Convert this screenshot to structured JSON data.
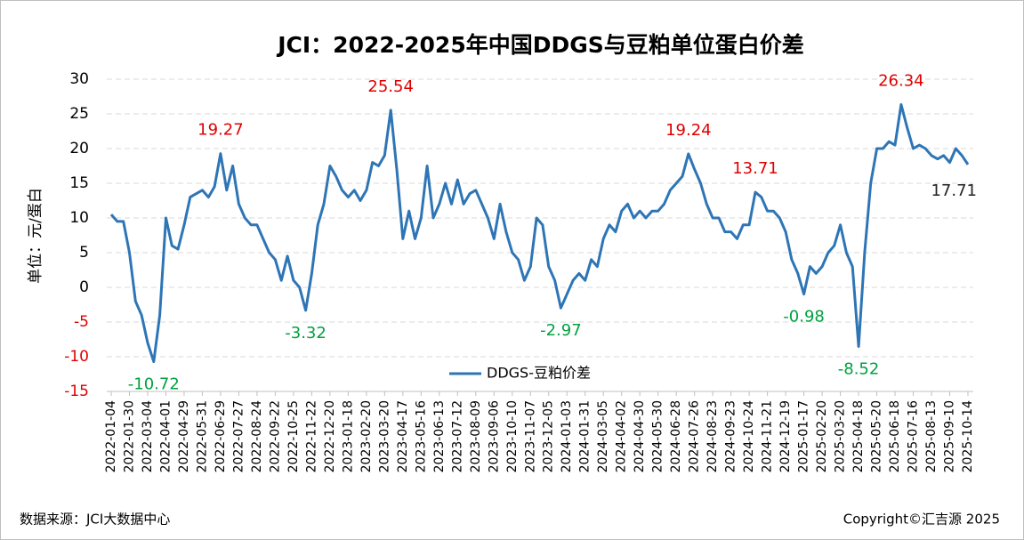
{
  "chart_data": {
    "type": "line",
    "title": "JCI：2022-2025年中国DDGS与豆粕单位蛋白价差",
    "y_label": "单位：元/蛋白",
    "source": "数据来源：JCI大数据中心",
    "copyright": "Copyright©汇吉源 2025",
    "ylim": [
      -15,
      30
    ],
    "yticks": [
      -15,
      -10,
      -5,
      0,
      5,
      10,
      15,
      20,
      25,
      30
    ],
    "grid": true,
    "legend": "bottom",
    "negative_tick_color": "#e00000",
    "peak_label_color": "#e00000",
    "trough_label_color": "#00a040",
    "last_label_color": "#222222",
    "categories": [
      "2022-01-04",
      null,
      null,
      "2022-01-30",
      null,
      null,
      "2022-03-04",
      null,
      null,
      "2022-04-01",
      null,
      null,
      "2022-04-29",
      null,
      null,
      "2022-05-31",
      null,
      null,
      "2022-06-29",
      null,
      null,
      "2022-07-27",
      null,
      null,
      "2022-08-24",
      null,
      null,
      "2022-09-22",
      null,
      null,
      "2022-10-25",
      null,
      null,
      "2022-11-22",
      null,
      null,
      "2022-12-20",
      null,
      null,
      "2023-01-18",
      null,
      null,
      "2023-02-20",
      null,
      null,
      "2023-03-20",
      null,
      null,
      "2023-04-17",
      null,
      null,
      "2023-05-16",
      null,
      null,
      "2023-06-13",
      null,
      null,
      "2023-07-12",
      null,
      null,
      "2023-08-09",
      null,
      null,
      "2023-09-06",
      null,
      null,
      "2023-10-10",
      null,
      null,
      "2023-11-07",
      null,
      null,
      "2023-12-05",
      null,
      null,
      "2024-01-03",
      null,
      null,
      "2024-01-31",
      null,
      null,
      "2024-03-05",
      null,
      null,
      "2024-04-02",
      null,
      null,
      "2024-04-30",
      null,
      null,
      "2024-05-30",
      null,
      null,
      "2024-06-28",
      null,
      null,
      "2024-07-26",
      null,
      null,
      "2024-08-23",
      null,
      null,
      "2024-09-23",
      null,
      null,
      "2024-10-24",
      null,
      null,
      "2024-11-21",
      null,
      null,
      "2024-12-19",
      null,
      null,
      "2025-01-17",
      null,
      null,
      "2025-02-20",
      null,
      null,
      "2025-03-20",
      null,
      null,
      "2025-04-18",
      null,
      null,
      "2025-05-20",
      null,
      null,
      "2025-06-18",
      null,
      null,
      "2025-07-16",
      null,
      null,
      "2025-08-13",
      null,
      null,
      "2025-09-10",
      null,
      null,
      "2025-10-14"
    ],
    "series": [
      {
        "name": "DDGS-豆粕价差",
        "color": "#2e75b6",
        "values": [
          10.5,
          9.5,
          9.5,
          5,
          -2,
          -4,
          -8,
          -10.72,
          -4,
          10,
          6,
          5.5,
          9,
          13,
          13.5,
          14,
          13,
          14.5,
          19.27,
          14,
          17.5,
          12,
          10,
          9,
          9,
          7,
          5,
          4,
          1,
          4.5,
          1,
          0,
          -3.32,
          2,
          9,
          12,
          17.5,
          16,
          14,
          13,
          14,
          12.5,
          14,
          18,
          17.5,
          19,
          25.54,
          17,
          7,
          11,
          7,
          10,
          17.5,
          10,
          12,
          15,
          12,
          15.5,
          12,
          13.5,
          14,
          12,
          10,
          7,
          12,
          8,
          5,
          4,
          1,
          3,
          10,
          9,
          3,
          1,
          -2.97,
          -1,
          1,
          2,
          1,
          4,
          3,
          7,
          9,
          8,
          11,
          12,
          10,
          11,
          10,
          11,
          11,
          12,
          14,
          15,
          16,
          19.24,
          17,
          15,
          12,
          10,
          10,
          8,
          8,
          7,
          9,
          9,
          13.71,
          13,
          11,
          11,
          10,
          8,
          4,
          2,
          -0.98,
          3,
          2,
          3,
          5,
          6,
          9,
          5,
          3,
          -8.52,
          5,
          15,
          20,
          20,
          21,
          20.5,
          26.34,
          23,
          20,
          20.5,
          20,
          19,
          18.5,
          19,
          18,
          20,
          19,
          17.71
        ],
        "value_labels": [
          null,
          null,
          null,
          null,
          null,
          null,
          null,
          "-10.72",
          null,
          null,
          null,
          null,
          null,
          null,
          null,
          null,
          null,
          null,
          "19.27",
          null,
          null,
          null,
          null,
          null,
          null,
          null,
          null,
          null,
          null,
          null,
          null,
          null,
          "-3.32",
          null,
          null,
          null,
          null,
          null,
          null,
          null,
          null,
          null,
          null,
          null,
          null,
          null,
          "25.54",
          null,
          null,
          null,
          null,
          null,
          null,
          null,
          null,
          null,
          null,
          null,
          null,
          null,
          null,
          null,
          null,
          null,
          null,
          null,
          null,
          null,
          null,
          null,
          null,
          null,
          null,
          null,
          "-2.97",
          null,
          null,
          null,
          null,
          null,
          null,
          null,
          null,
          null,
          null,
          null,
          null,
          null,
          null,
          null,
          null,
          null,
          null,
          null,
          null,
          "19.24",
          null,
          null,
          null,
          null,
          null,
          null,
          null,
          null,
          null,
          null,
          "13.71",
          null,
          null,
          null,
          null,
          null,
          null,
          null,
          "-0.98",
          null,
          null,
          null,
          null,
          null,
          null,
          null,
          null,
          "-8.52",
          null,
          null,
          null,
          null,
          null,
          null,
          "26.34",
          null,
          null,
          null,
          null,
          null,
          null,
          null,
          null,
          null,
          null,
          "17.71"
        ]
      }
    ]
  }
}
